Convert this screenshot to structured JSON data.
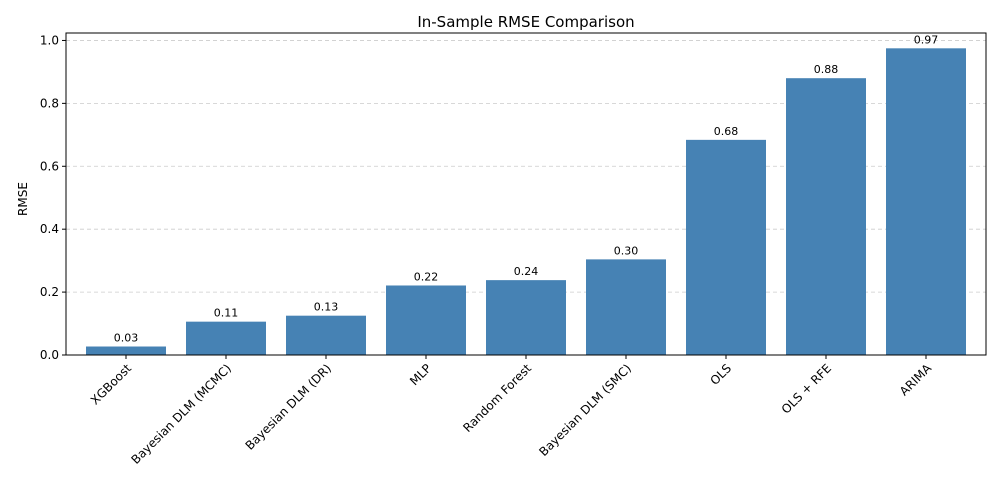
{
  "chart_data": {
    "type": "bar",
    "title": "In-Sample RMSE Comparison",
    "xlabel": "",
    "ylabel": "RMSE",
    "categories": [
      "XGBoost",
      "Bayesian DLM (MCMC)",
      "Bayesian DLM (DR)",
      "MLP",
      "Random Forest",
      "Bayesian DLM (SMC)",
      "OLS",
      "OLS + RFE",
      "ARIMA"
    ],
    "values": [
      0.027,
      0.106,
      0.125,
      0.221,
      0.238,
      0.304,
      0.684,
      0.88,
      0.975
    ],
    "value_labels": [
      "0.03",
      "0.11",
      "0.13",
      "0.22",
      "0.24",
      "0.30",
      "0.68",
      "0.88",
      "0.97"
    ],
    "ylim": [
      0,
      1.0237
    ],
    "yticks": [
      0.0,
      0.2,
      0.4,
      0.6,
      0.8,
      1.0
    ],
    "ytick_labels": [
      "0.0",
      "0.2",
      "0.4",
      "0.6",
      "0.8",
      "1.0"
    ],
    "grid": "y-dashed",
    "bar_color": "#4682b4"
  }
}
